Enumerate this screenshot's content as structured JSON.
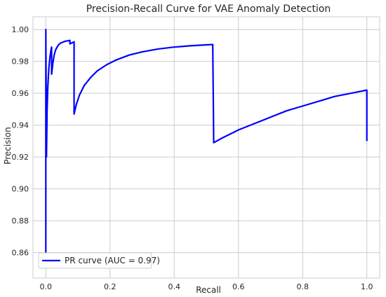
{
  "chart_data": {
    "type": "line",
    "title": "Precision-Recall Curve for VAE Anomaly Detection",
    "xlabel": "Recall",
    "ylabel": "Precision",
    "xlim": [
      -0.04,
      1.04
    ],
    "ylim": [
      0.844,
      1.008
    ],
    "xticks": [
      0.0,
      0.2,
      0.4,
      0.6,
      0.8,
      1.0
    ],
    "xtick_labels": [
      "0.0",
      "0.2",
      "0.4",
      "0.6",
      "0.8",
      "1.0"
    ],
    "yticks": [
      0.86,
      0.88,
      0.9,
      0.92,
      0.94,
      0.96,
      0.98,
      1.0
    ],
    "ytick_labels": [
      "0.86",
      "0.88",
      "0.90",
      "0.92",
      "0.94",
      "0.96",
      "0.98",
      "1.00"
    ],
    "grid": true,
    "legend_position": "lower left",
    "colors": {
      "series": "#0000ff",
      "grid": "#cccccc",
      "axes_edge": "#cccccc"
    },
    "series": [
      {
        "name": "PR curve (AUC = 0.97)",
        "x": [
          0.0,
          0.0,
          0.002,
          0.004,
          0.006,
          0.008,
          0.01,
          0.013,
          0.016,
          0.018,
          0.018,
          0.022,
          0.026,
          0.03,
          0.035,
          0.04,
          0.046,
          0.052,
          0.058,
          0.064,
          0.07,
          0.075,
          0.075,
          0.08,
          0.085,
          0.088,
          0.088,
          0.095,
          0.105,
          0.12,
          0.14,
          0.16,
          0.19,
          0.22,
          0.26,
          0.3,
          0.35,
          0.4,
          0.45,
          0.5,
          0.52,
          0.52,
          0.523,
          0.55,
          0.6,
          0.65,
          0.7,
          0.75,
          0.8,
          0.85,
          0.9,
          0.95,
          1.0,
          1.0
        ],
        "y": [
          0.853,
          1.0,
          0.92,
          0.95,
          0.963,
          0.971,
          0.977,
          0.983,
          0.987,
          0.989,
          0.972,
          0.979,
          0.984,
          0.987,
          0.989,
          0.9905,
          0.9915,
          0.992,
          0.9925,
          0.9928,
          0.993,
          0.9932,
          0.991,
          0.9915,
          0.992,
          0.9923,
          0.947,
          0.953,
          0.959,
          0.965,
          0.97,
          0.974,
          0.978,
          0.981,
          0.984,
          0.986,
          0.9878,
          0.989,
          0.9898,
          0.9904,
          0.9906,
          0.9906,
          0.929,
          0.932,
          0.937,
          0.941,
          0.945,
          0.949,
          0.952,
          0.955,
          0.958,
          0.96,
          0.962,
          0.93
        ]
      }
    ]
  }
}
